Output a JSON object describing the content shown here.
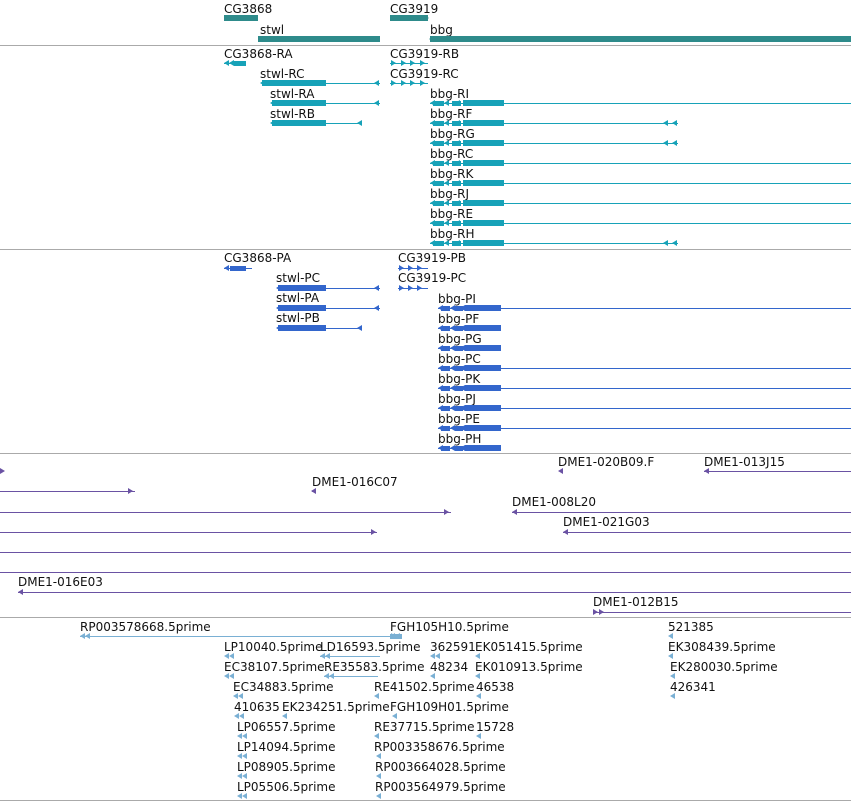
{
  "colors": {
    "gene": "#2e8b8b",
    "transcript": "#17a2b8",
    "protein": "#3366cc",
    "clone": "#6a52a3",
    "est": "#7ab0d4",
    "separator": "#aaaaaa"
  },
  "gene_track": [
    {
      "name": "CG3868"
    },
    {
      "name": "stwl"
    },
    {
      "name": "CG3919"
    },
    {
      "name": "bbg"
    }
  ],
  "transcript_track": [
    {
      "name": "CG3868-RA"
    },
    {
      "name": "stwl-RC"
    },
    {
      "name": "stwl-RA"
    },
    {
      "name": "stwl-RB"
    },
    {
      "name": "CG3919-RB"
    },
    {
      "name": "CG3919-RC"
    },
    {
      "name": "bbg-RI"
    },
    {
      "name": "bbg-RF"
    },
    {
      "name": "bbg-RG"
    },
    {
      "name": "bbg-RC"
    },
    {
      "name": "bbg-RK"
    },
    {
      "name": "bbg-RJ"
    },
    {
      "name": "bbg-RE"
    },
    {
      "name": "bbg-RH"
    }
  ],
  "protein_track": [
    {
      "name": "CG3868-PA"
    },
    {
      "name": "stwl-PC"
    },
    {
      "name": "stwl-PA"
    },
    {
      "name": "stwl-PB"
    },
    {
      "name": "CG3919-PB"
    },
    {
      "name": "CG3919-PC"
    },
    {
      "name": "bbg-PI"
    },
    {
      "name": "bbg-PF"
    },
    {
      "name": "bbg-PG"
    },
    {
      "name": "bbg-PC"
    },
    {
      "name": "bbg-PK"
    },
    {
      "name": "bbg-PJ"
    },
    {
      "name": "bbg-PE"
    },
    {
      "name": "bbg-PH"
    }
  ],
  "clone_track": [
    {
      "name": "DME1-020B09.F"
    },
    {
      "name": "DME1-013J15"
    },
    {
      "name": "DME1-016C07"
    },
    {
      "name": "DME1-008L20"
    },
    {
      "name": "DME1-021G03"
    },
    {
      "name": "DME1-016E03"
    },
    {
      "name": "DME1-012B15"
    }
  ],
  "est_track": [
    {
      "name": "RP003578668.5prime"
    },
    {
      "name": "FGH105H10.5prime"
    },
    {
      "name": "521385"
    },
    {
      "name": "LP10040.5prime"
    },
    {
      "name": "LD16593.5prime"
    },
    {
      "name": "362591"
    },
    {
      "name": "EK051415.5prime"
    },
    {
      "name": "EK308439.5prime"
    },
    {
      "name": "EC38107.5prime"
    },
    {
      "name": "RE35583.5prime"
    },
    {
      "name": "48234"
    },
    {
      "name": "EK010913.5prime"
    },
    {
      "name": "EK280030.5prime"
    },
    {
      "name": "EC34883.5prime"
    },
    {
      "name": "RE41502.5prime"
    },
    {
      "name": "46538"
    },
    {
      "name": "426341"
    },
    {
      "name": "410635"
    },
    {
      "name": "EK234251.5prime"
    },
    {
      "name": "FGH109H01.5prime"
    },
    {
      "name": "LP06557.5prime"
    },
    {
      "name": "RE37715.5prime"
    },
    {
      "name": "15728"
    },
    {
      "name": "LP14094.5prime"
    },
    {
      "name": "RP003358676.5prime"
    },
    {
      "name": "LP08905.5prime"
    },
    {
      "name": "RP003664028.5prime"
    },
    {
      "name": "LP05506.5prime"
    },
    {
      "name": "RP003564979.5prime"
    }
  ]
}
